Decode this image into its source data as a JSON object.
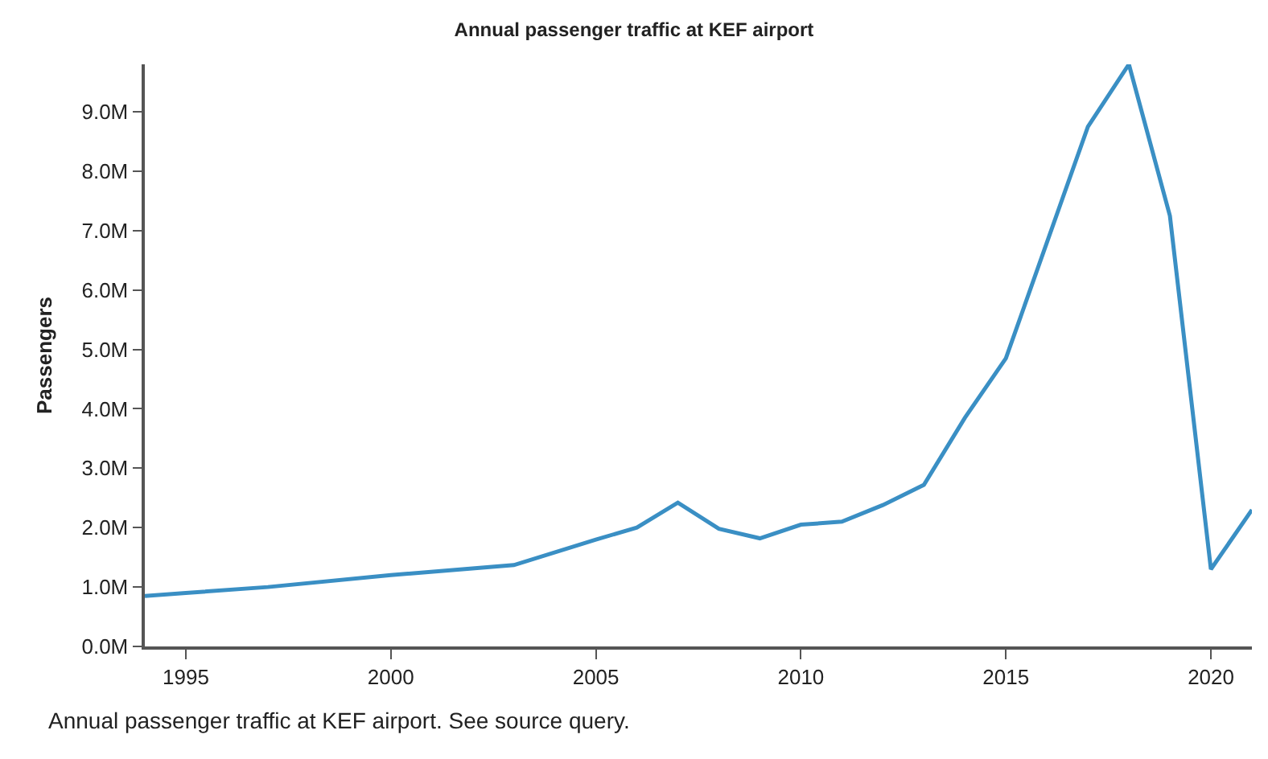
{
  "chart_data": {
    "type": "line",
    "title": "Annual passenger traffic at KEF airport",
    "ylabel": "Passengers",
    "x": [
      1994,
      1995,
      1997,
      2000,
      2003,
      2005,
      2006,
      2007,
      2008,
      2009,
      2010,
      2011,
      2012,
      2013,
      2014,
      2015,
      2016,
      2017,
      2018,
      2019,
      2020,
      2021
    ],
    "series": [
      {
        "color": "#3a8fc4",
        "values": [
          0.85,
          0.9,
          1.0,
          1.2,
          1.37,
          1.8,
          2.0,
          2.42,
          1.98,
          1.82,
          2.05,
          2.1,
          2.38,
          2.72,
          3.85,
          4.85,
          6.8,
          8.75,
          9.8,
          7.25,
          1.3,
          2.3
        ]
      }
    ],
    "xlim": [
      1994,
      2021
    ],
    "xticks": [
      1995,
      2000,
      2005,
      2010,
      2015,
      2020
    ],
    "ylim": [
      0,
      9.8
    ],
    "yticks": [
      {
        "value": 0,
        "label": "0.0M"
      },
      {
        "value": 1,
        "label": "1.0M"
      },
      {
        "value": 2,
        "label": "2.0M"
      },
      {
        "value": 3,
        "label": "3.0M"
      },
      {
        "value": 4,
        "label": "4.0M"
      },
      {
        "value": 5,
        "label": "5.0M"
      },
      {
        "value": 6,
        "label": "6.0M"
      },
      {
        "value": 7,
        "label": "7.0M"
      },
      {
        "value": 8,
        "label": "8.0M"
      },
      {
        "value": 9,
        "label": "9.0M"
      }
    ],
    "marker": "none",
    "line_style": "solid",
    "annotations": [
      "Annual passenger traffic at KEF airport. See source query."
    ]
  }
}
